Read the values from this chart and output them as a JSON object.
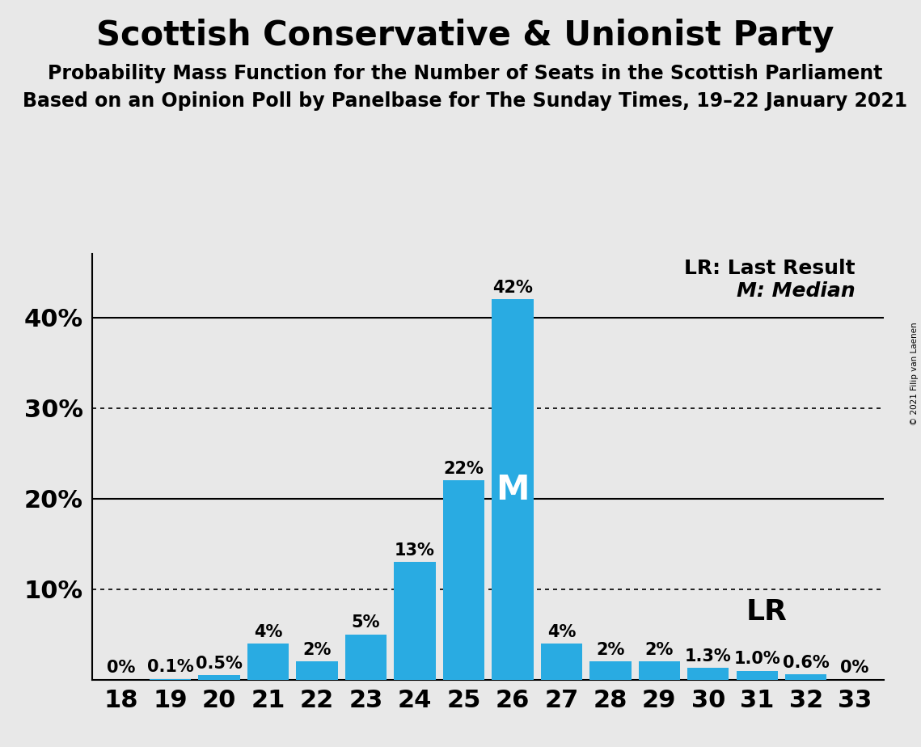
{
  "title": "Scottish Conservative & Unionist Party",
  "subtitle1": "Probability Mass Function for the Number of Seats in the Scottish Parliament",
  "subtitle2": "Based on an Opinion Poll by Panelbase for The Sunday Times, 19–22 January 2021",
  "copyright": "© 2021 Filip van Laenen",
  "categories": [
    18,
    19,
    20,
    21,
    22,
    23,
    24,
    25,
    26,
    27,
    28,
    29,
    30,
    31,
    32,
    33
  ],
  "values": [
    0.0,
    0.1,
    0.5,
    4.0,
    2.0,
    5.0,
    13.0,
    22.0,
    42.0,
    4.0,
    2.0,
    2.0,
    1.3,
    1.0,
    0.6,
    0.0
  ],
  "labels": [
    "0%",
    "0.1%",
    "0.5%",
    "4%",
    "2%",
    "5%",
    "13%",
    "22%",
    "42%",
    "4%",
    "2%",
    "2%",
    "1.3%",
    "1.0%",
    "0.6%",
    "0%"
  ],
  "show_label": [
    true,
    true,
    true,
    true,
    true,
    true,
    true,
    true,
    true,
    true,
    true,
    true,
    true,
    true,
    true,
    true
  ],
  "bar_color": "#29ABE2",
  "background_color": "#E8E8E8",
  "median_seat": 26,
  "lr_seat": 31,
  "median_label": "M",
  "lr_label": "LR",
  "legend_lr": "LR: Last Result",
  "legend_m": "M: Median",
  "yticks": [
    0,
    10,
    20,
    30,
    40
  ],
  "ytick_labels": [
    "",
    "10%",
    "20%",
    "30%",
    "40%"
  ],
  "ylim": [
    0,
    47
  ],
  "dotted_lines": [
    10,
    30
  ],
  "solid_lines": [
    20,
    40
  ],
  "title_fontsize": 30,
  "subtitle_fontsize": 17,
  "tick_fontsize": 22,
  "bar_label_fontsize": 15,
  "legend_fontsize": 18,
  "median_fontsize": 30,
  "lr_inline_fontsize": 26
}
